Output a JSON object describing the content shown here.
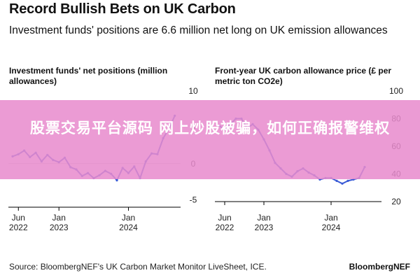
{
  "header": {
    "title": "Record Bullish Bets on UK Carbon",
    "subtitle": "Investment funds' positions are 6.6 million net long on UK emission allowances"
  },
  "overlay": {
    "text": "股票交易平台源码 网上炒股被骗，如何正确报警维权",
    "color": "#e88acd"
  },
  "footer": {
    "source": "Source: BloombergNEF's UK Carbon Market Monitor LiveSheet, ICE.",
    "brand": "BloombergNEF"
  },
  "colors": {
    "series": "#3b5bd6",
    "axis": "#000000",
    "zero_line": "#cfcfcf"
  },
  "chart_data": [
    {
      "type": "line",
      "title": "Investment funds' net positions (million allowances)",
      "x_ticks": [
        {
          "date": "2022-06",
          "label": [
            "Jun",
            "2022"
          ]
        },
        {
          "date": "2023-01",
          "label": [
            "Jan",
            "2023"
          ]
        },
        {
          "date": "2024-01",
          "label": [
            "Jan",
            "2024"
          ]
        }
      ],
      "xlim": [
        "2022-05",
        "2024-10"
      ],
      "y_ticks": [
        10,
        5,
        0,
        -5
      ],
      "ylim": [
        -6,
        10
      ],
      "zero_line": true,
      "axis_side": "right",
      "series": [
        {
          "x": [
            "2022-05",
            "2022-06",
            "2022-07",
            "2022-08",
            "2022-09",
            "2022-10",
            "2022-11",
            "2022-12",
            "2023-01",
            "2023-02",
            "2023-03",
            "2023-04",
            "2023-05",
            "2023-06",
            "2023-07",
            "2023-08",
            "2023-09",
            "2023-10",
            "2023-11",
            "2023-12",
            "2024-01",
            "2024-02",
            "2024-03",
            "2024-04",
            "2024-05",
            "2024-06",
            "2024-07",
            "2024-08",
            "2024-09"
          ],
          "values": [
            1.0,
            1.3,
            1.8,
            0.9,
            1.5,
            0.3,
            1.2,
            0.5,
            0.2,
            0.8,
            -0.5,
            -0.8,
            -1.7,
            -1.3,
            -2.0,
            -1.6,
            -1.0,
            -1.4,
            -2.3,
            -0.6,
            -1.3,
            -0.4,
            -2.0,
            0.3,
            1.4,
            1.3,
            3.5,
            4.8,
            6.6
          ]
        }
      ]
    },
    {
      "type": "line",
      "title": "Front-year UK carbon allowance price (£ per metric ton CO2e)",
      "x_ticks": [
        {
          "date": "2022-06",
          "label": [
            "Jun",
            "2022"
          ]
        },
        {
          "date": "2023-01",
          "label": [
            "Jan",
            "2023"
          ]
        },
        {
          "date": "2024-01",
          "label": [
            "Jan",
            "2024"
          ]
        }
      ],
      "xlim": [
        "2022-05",
        "2024-10"
      ],
      "y_ticks": [
        100,
        80,
        60,
        40,
        20
      ],
      "ylim": [
        20,
        100
      ],
      "axis_side": "right",
      "series": [
        {
          "x": [
            "2022-05",
            "2022-06",
            "2022-07",
            "2022-08",
            "2022-09",
            "2022-10",
            "2022-11",
            "2022-12",
            "2023-01",
            "2023-02",
            "2023-03",
            "2023-04",
            "2023-05",
            "2023-06",
            "2023-07",
            "2023-08",
            "2023-09",
            "2023-10",
            "2023-11",
            "2023-12",
            "2024-01",
            "2024-02",
            "2024-03",
            "2024-04",
            "2024-05",
            "2024-06",
            "2024-07"
          ],
          "values": [
            75,
            72,
            76,
            80,
            80,
            73,
            76,
            72,
            65,
            57,
            48,
            44,
            40,
            38,
            42,
            44,
            41,
            39,
            36,
            37,
            37,
            35,
            33,
            35,
            36,
            37,
            45
          ]
        }
      ]
    }
  ]
}
